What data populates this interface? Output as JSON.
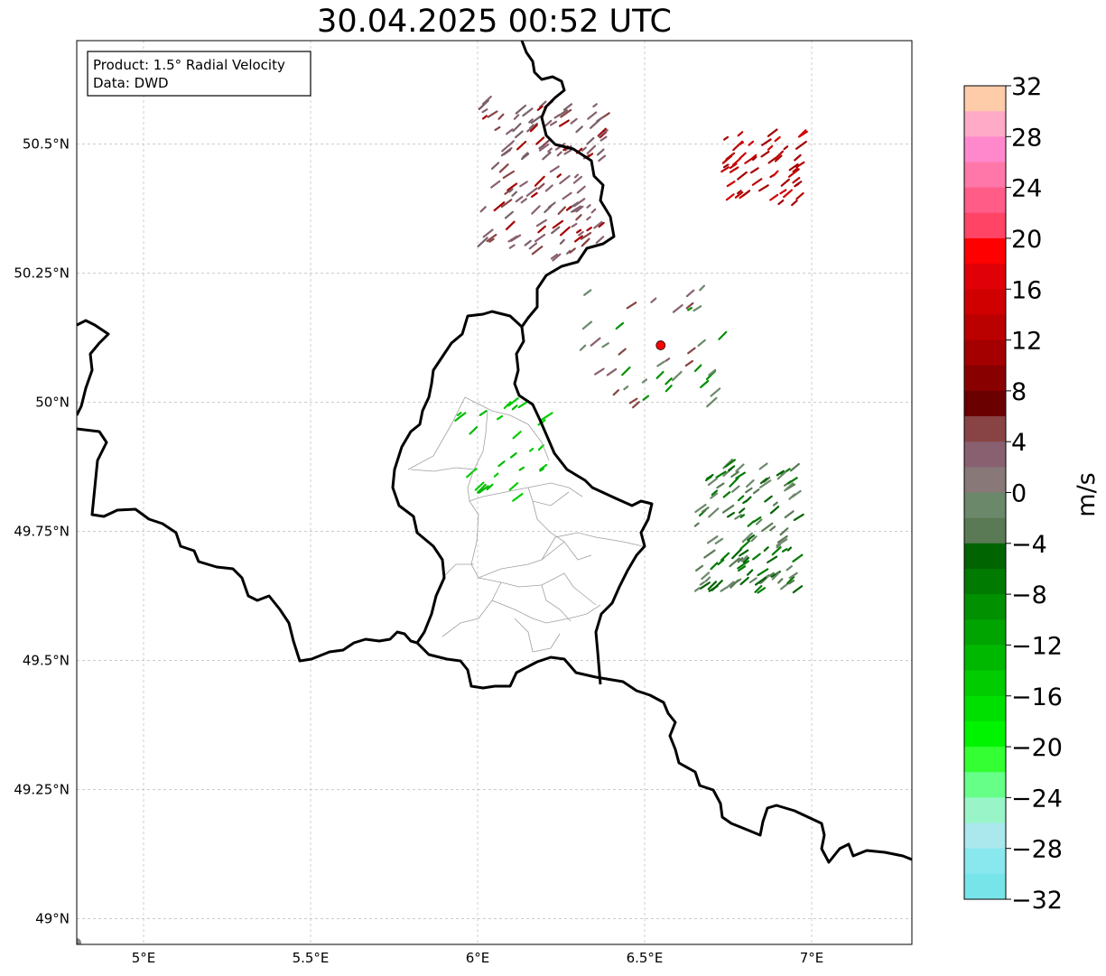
{
  "title": "30.04.2025 00:52 UTC",
  "info_box": {
    "product": "Product: 1.5° Radial Velocity",
    "data_source": "Data: DWD"
  },
  "axes": {
    "lon_range": [
      4.8,
      7.3
    ],
    "lat_range": [
      48.95,
      50.7
    ],
    "lon_ticks": [
      {
        "value": 5.0,
        "label": "5°E"
      },
      {
        "value": 5.5,
        "label": "5.5°E"
      },
      {
        "value": 6.0,
        "label": "6°E"
      },
      {
        "value": 6.5,
        "label": "6.5°E"
      },
      {
        "value": 7.0,
        "label": "7°E"
      }
    ],
    "lat_ticks": [
      {
        "value": 50.5,
        "label": "50.5°N"
      },
      {
        "value": 50.25,
        "label": "50.25°N"
      },
      {
        "value": 50.0,
        "label": "50°N"
      },
      {
        "value": 49.75,
        "label": "49.75°N"
      },
      {
        "value": 49.5,
        "label": "49.5°N"
      },
      {
        "value": 49.25,
        "label": "49.25°N"
      },
      {
        "value": 49.0,
        "label": "49°N"
      }
    ],
    "grid": true
  },
  "radar_site": {
    "lon": 6.548,
    "lat": 50.11,
    "color": "#ff0000"
  },
  "colorbar": {
    "unit": "m/s",
    "min": -32,
    "max": 32,
    "step": 4,
    "tick_labels": [
      "32",
      "28",
      "24",
      "20",
      "16",
      "12",
      "8",
      "4",
      "0",
      "−4",
      "−8",
      "−12",
      "−16",
      "−20",
      "−24",
      "−28",
      "−32"
    ],
    "colors_top_to_bottom": [
      "#ffccaa",
      "#ffaac6",
      "#ff88cc",
      "#ff77a8",
      "#ff5c88",
      "#ff4466",
      "#ff0000",
      "#e00008",
      "#d00000",
      "#bb0000",
      "#a40000",
      "#880000",
      "#6a0000",
      "#884444",
      "#886070",
      "#887878",
      "#6b886b",
      "#5a7a55",
      "#006400",
      "#007a00",
      "#009000",
      "#00a400",
      "#00b800",
      "#00cc00",
      "#00e000",
      "#00f400",
      "#33ff33",
      "#66ff88",
      "#99f5c8",
      "#aae8ee",
      "#88e8ee",
      "#77e4ea"
    ]
  },
  "echo_clusters": [
    {
      "name": "northwest-mixed",
      "lon": [
        6.0,
        6.37
      ],
      "lat": [
        50.27,
        50.58
      ],
      "count": 140,
      "colors": [
        "#886070",
        "#886070",
        "#776068",
        "#884444",
        "#a40000"
      ]
    },
    {
      "name": "northeast-inbound",
      "lon": [
        6.73,
        6.97
      ],
      "lat": [
        50.38,
        50.52
      ],
      "count": 55,
      "colors": [
        "#a40000",
        "#bb0000",
        "#d00000"
      ]
    },
    {
      "name": "east-outbound",
      "lon": [
        6.65,
        6.95
      ],
      "lat": [
        49.63,
        49.88
      ],
      "count": 120,
      "colors": [
        "#5a7a55",
        "#6b886b",
        "#006400",
        "#007a00"
      ]
    },
    {
      "name": "luxembourg-green",
      "lon": [
        5.93,
        6.2
      ],
      "lat": [
        49.8,
        50.0
      ],
      "count": 28,
      "colors": [
        "#00cc00",
        "#00b800"
      ]
    },
    {
      "name": "near-radar",
      "lon": [
        6.3,
        6.75
      ],
      "lat": [
        49.98,
        50.22
      ],
      "count": 40,
      "colors": [
        "#6b886b",
        "#886070",
        "#884444",
        "#009000"
      ]
    }
  ]
}
